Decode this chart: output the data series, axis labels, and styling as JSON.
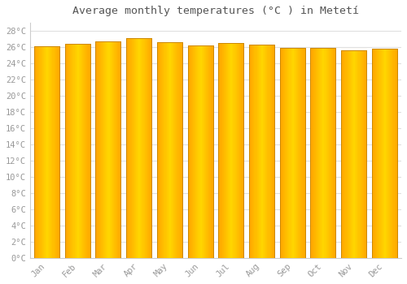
{
  "title": "Average monthly temperatures (°C ) in Metetí",
  "months": [
    "Jan",
    "Feb",
    "Mar",
    "Apr",
    "May",
    "Jun",
    "Jul",
    "Aug",
    "Sep",
    "Oct",
    "Nov",
    "Dec"
  ],
  "values": [
    26.1,
    26.4,
    26.7,
    27.1,
    26.6,
    26.2,
    26.5,
    26.3,
    25.9,
    25.9,
    25.6,
    25.8
  ],
  "ylim": [
    0,
    29
  ],
  "yticks": [
    0,
    2,
    4,
    6,
    8,
    10,
    12,
    14,
    16,
    18,
    20,
    22,
    24,
    26,
    28
  ],
  "bar_color_center": "#FFD700",
  "bar_color_edge": "#FFA500",
  "bar_edge_color": "#CC8800",
  "background_color": "#FFFFFF",
  "grid_color": "#E0E0E0",
  "title_fontsize": 9.5,
  "tick_fontsize": 7.5,
  "tick_color": "#999999",
  "font_family": "monospace"
}
